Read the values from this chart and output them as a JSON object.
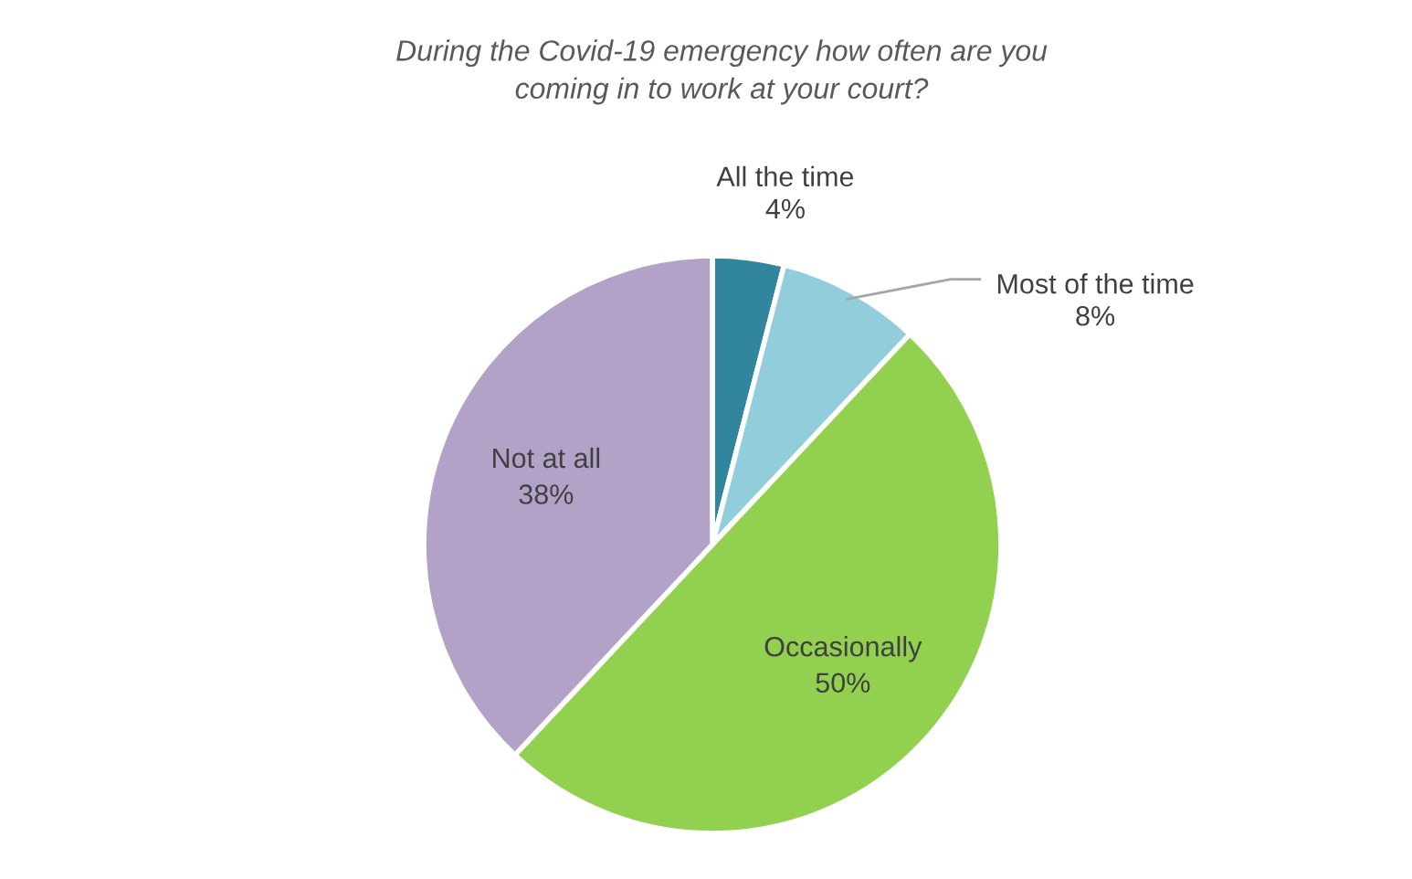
{
  "chart_data": {
    "type": "pie",
    "title": "During the Covid-19 emergency how often are you\ncoming in to work at your court?",
    "categories": [
      "All the time",
      "Most of the time",
      "Occasionally",
      "Not at all"
    ],
    "values": [
      4,
      8,
      50,
      38
    ],
    "colors": [
      "#31859c",
      "#92cddc",
      "#92d050",
      "#b3a2c7"
    ],
    "value_labels": [
      "4%",
      "8%",
      "50%",
      "38%"
    ],
    "legend": false
  }
}
